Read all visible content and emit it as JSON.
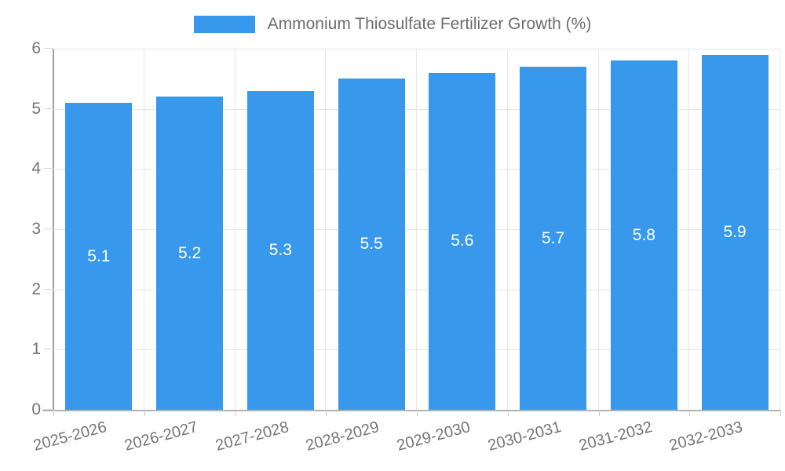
{
  "chart_data": {
    "type": "bar",
    "title": "",
    "legend_label": "Ammonium Thiosulfate Fertilizer Growth (%)",
    "legend_position": "top",
    "categories": [
      "2025-2026",
      "2026-2027",
      "2027-2028",
      "2028-2029",
      "2029-2030",
      "2030-2031",
      "2031-2032",
      "2032-2033"
    ],
    "series": [
      {
        "name": "Ammonium Thiosulfate Fertilizer Growth (%)",
        "values": [
          5.1,
          5.2,
          5.3,
          5.5,
          5.6,
          5.7,
          5.8,
          5.9
        ]
      }
    ],
    "value_labels": [
      "5.1",
      "5.2",
      "5.3",
      "5.5",
      "5.6",
      "5.7",
      "5.8",
      "5.9"
    ],
    "xlabel": "",
    "ylabel": "",
    "ylim": [
      0,
      6
    ],
    "yticks": [
      0,
      1,
      2,
      3,
      4,
      5,
      6
    ],
    "grid": true,
    "x_label_rotation_deg": -15,
    "colors": {
      "bar": "#3898ec",
      "bar_value_text": "#ffffff",
      "axis_text": "#757575",
      "legend_text": "#6d6d6d",
      "gridline": "#e6e6e6",
      "y_axis_line": "#9e9e9e",
      "x_axis_line": "#b2b2b2"
    }
  }
}
